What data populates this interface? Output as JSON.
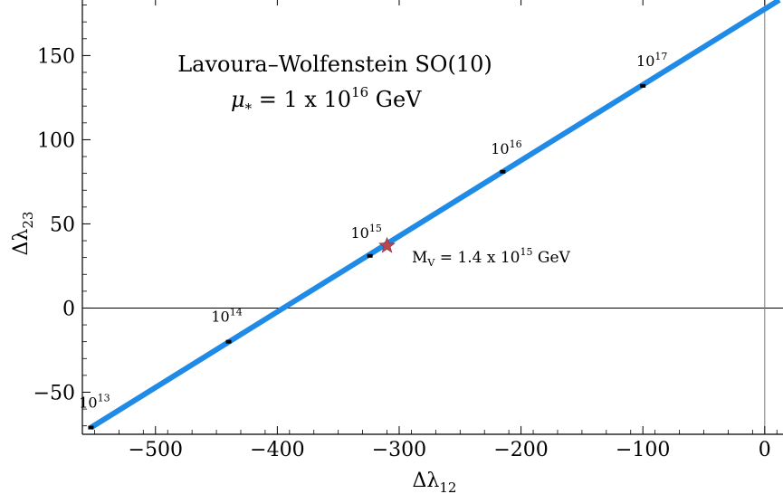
{
  "chart_data": {
    "type": "line",
    "title_lines": [
      "Lavoura–Wolfenstein SO(10)",
      "μ₊ = 1 x 10¹⁶ GeV"
    ],
    "title_line1": "Lavoura–Wolfenstein SO(10)",
    "title_line2_parts": {
      "mu": "μ",
      "sub": "*",
      "mid": " = 1 x 10",
      "sup": "16",
      "end": " GeV"
    },
    "xlabel": {
      "base": "Δλ",
      "sub": "12"
    },
    "ylabel": {
      "base": "Δλ",
      "sub": "23"
    },
    "xlim": [
      -560,
      15
    ],
    "ylim": [
      -75,
      183
    ],
    "xticks": [
      -500,
      -400,
      -300,
      -200,
      -100,
      0
    ],
    "yticks": [
      -50,
      0,
      50,
      100,
      150
    ],
    "xtick_labels": [
      "−500",
      "−400",
      "−300",
      "−200",
      "−100",
      "0"
    ],
    "ytick_labels": [
      "−50",
      "0",
      "50",
      "100",
      "150"
    ],
    "series": [
      {
        "color": "#1f8be6",
        "x": [
          -553,
          12
        ],
        "y": [
          -71,
          183
        ]
      }
    ],
    "markers": [
      {
        "x": -553,
        "y": -71,
        "label_base": "10",
        "label_exp": "13"
      },
      {
        "x": -440,
        "y": -20,
        "label_base": "10",
        "label_exp": "14"
      },
      {
        "x": -324,
        "y": 31,
        "label_base": "10",
        "label_exp": "15"
      },
      {
        "x": -215,
        "y": 81,
        "label_base": "10",
        "label_exp": "16"
      },
      {
        "x": -100,
        "y": 132,
        "label_base": "10",
        "label_exp": "17"
      }
    ],
    "highlight": {
      "x": -310,
      "y": 37,
      "color": "#b5474e",
      "label": {
        "base": "M",
        "sub": "V",
        "mid": " = 1.4 x 10",
        "sup": "15",
        "end": " GeV"
      }
    },
    "grid": false
  }
}
